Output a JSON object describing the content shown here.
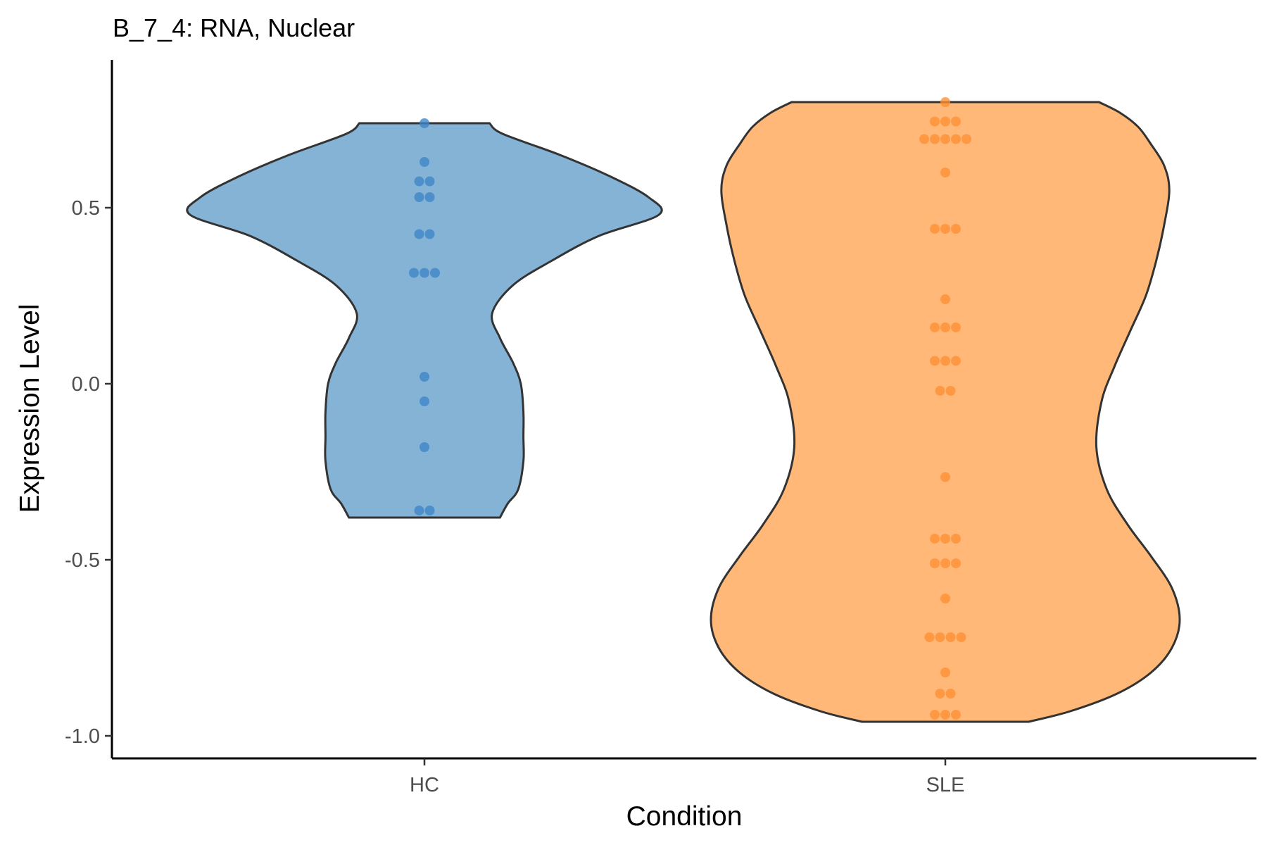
{
  "chart_data": {
    "type": "violin",
    "title": "B_7_4: RNA, Nuclear",
    "xlabel": "Condition",
    "ylabel": "Expression Level",
    "categories": [
      "HC",
      "SLE"
    ],
    "ylim": [
      -1.06,
      0.92
    ],
    "yticks": [
      -1.0,
      -0.5,
      0.0,
      0.5
    ],
    "ytick_labels": [
      "-1.0",
      "-0.5",
      "0.0",
      "0.5"
    ],
    "grid": false,
    "legend": "none",
    "colors": {
      "HC_fill": "#85b3d6",
      "HC_points": "#3d85c6",
      "SLE_fill": "#ffb877",
      "SLE_points": "#ff8f33",
      "outline": "#333333"
    },
    "series": [
      {
        "category": "HC",
        "violin": {
          "min": -0.38,
          "max": 0.74,
          "profile": [
            [
              -0.38,
              0.29
            ],
            [
              -0.34,
              0.32
            ],
            [
              -0.3,
              0.36
            ],
            [
              -0.22,
              0.38
            ],
            [
              -0.15,
              0.38
            ],
            [
              -0.08,
              0.38
            ],
            [
              0.0,
              0.37
            ],
            [
              0.06,
              0.34
            ],
            [
              0.13,
              0.29
            ],
            [
              0.2,
              0.26
            ],
            [
              0.28,
              0.34
            ],
            [
              0.35,
              0.49
            ],
            [
              0.42,
              0.67
            ],
            [
              0.48,
              0.9
            ],
            [
              0.53,
              0.86
            ],
            [
              0.59,
              0.71
            ],
            [
              0.65,
              0.52
            ],
            [
              0.71,
              0.3
            ],
            [
              0.74,
              0.25
            ]
          ]
        },
        "points": [
          0.74,
          0.63,
          0.575,
          0.575,
          0.53,
          0.53,
          0.425,
          0.425,
          0.315,
          0.315,
          0.315,
          0.02,
          -0.05,
          -0.18,
          -0.36,
          -0.36
        ]
      },
      {
        "category": "SLE",
        "violin": {
          "min": -0.96,
          "max": 0.8,
          "profile": [
            [
              -0.96,
              0.32
            ],
            [
              -0.93,
              0.48
            ],
            [
              -0.88,
              0.66
            ],
            [
              -0.82,
              0.79
            ],
            [
              -0.75,
              0.87
            ],
            [
              -0.67,
              0.9
            ],
            [
              -0.58,
              0.87
            ],
            [
              -0.49,
              0.79
            ],
            [
              -0.4,
              0.7
            ],
            [
              -0.3,
              0.62
            ],
            [
              -0.18,
              0.58
            ],
            [
              -0.05,
              0.6
            ],
            [
              0.05,
              0.65
            ],
            [
              0.15,
              0.71
            ],
            [
              0.25,
              0.77
            ],
            [
              0.35,
              0.81
            ],
            [
              0.45,
              0.84
            ],
            [
              0.55,
              0.86
            ],
            [
              0.62,
              0.84
            ],
            [
              0.68,
              0.79
            ],
            [
              0.73,
              0.74
            ],
            [
              0.77,
              0.67
            ],
            [
              0.8,
              0.59
            ]
          ]
        },
        "points": [
          0.8,
          0.745,
          0.745,
          0.745,
          0.695,
          0.695,
          0.695,
          0.695,
          0.695,
          0.6,
          0.44,
          0.44,
          0.44,
          0.24,
          0.16,
          0.16,
          0.16,
          0.065,
          0.065,
          0.065,
          -0.02,
          -0.02,
          -0.265,
          -0.44,
          -0.44,
          -0.44,
          -0.51,
          -0.51,
          -0.51,
          -0.61,
          -0.72,
          -0.72,
          -0.72,
          -0.72,
          -0.82,
          -0.88,
          -0.88,
          -0.94,
          -0.94,
          -0.94
        ]
      }
    ]
  }
}
